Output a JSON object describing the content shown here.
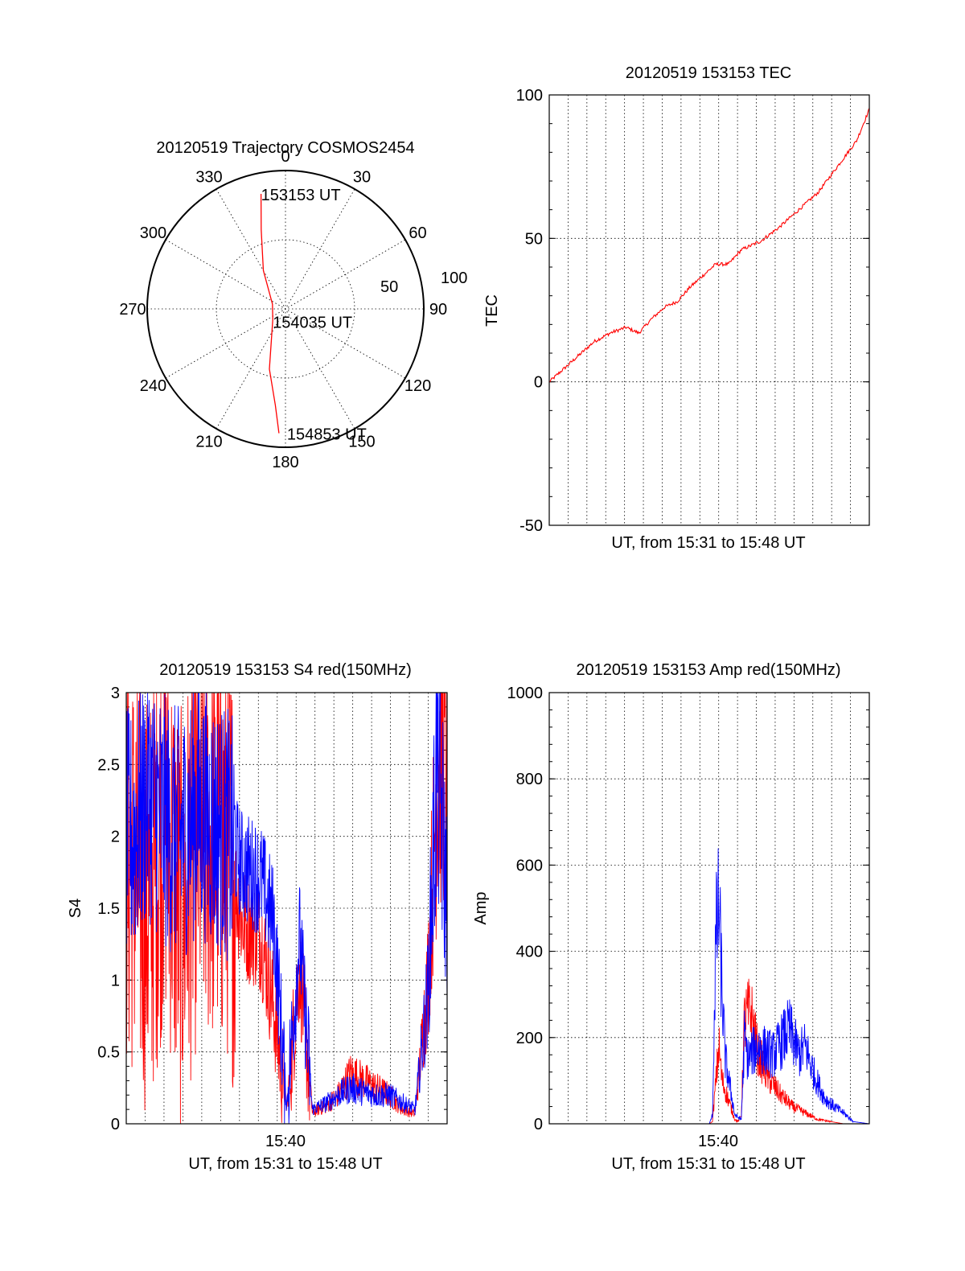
{
  "chart_data": [
    {
      "type": "polar",
      "title": "20120519 Trajectory COSMOS2454",
      "azimuth_labels": [
        "0",
        "30",
        "60",
        "90",
        "120",
        "150",
        "180",
        "210",
        "240",
        "270",
        "300",
        "330"
      ],
      "radial_labels": [
        "50",
        "100"
      ],
      "radial_range": [
        0,
        100
      ],
      "grid": true,
      "series": [
        {
          "color": "#ff0000",
          "points": [
            {
              "az": 348,
              "zen": 85,
              "label": "153153 UT"
            },
            {
              "az": 343,
              "zen": 60
            },
            {
              "az": 330,
              "zen": 32
            },
            {
              "az": 290,
              "zen": 10
            },
            {
              "az": 230,
              "zen": 12,
              "label": "154035 UT"
            },
            {
              "az": 195,
              "zen": 45
            },
            {
              "az": 186,
              "zen": 70
            },
            {
              "az": 183,
              "zen": 90,
              "label": "154853 UT"
            }
          ]
        }
      ]
    },
    {
      "type": "line",
      "title": "20120519 153153 TEC",
      "xlabel": "UT, from 15:31 to 15:48 UT",
      "ylabel": "TEC",
      "ylim": [
        -50,
        100
      ],
      "xlim": [
        0,
        1
      ],
      "yticks": [
        "-50",
        "0",
        "50",
        "100"
      ],
      "grid": true,
      "series": [
        {
          "color": "#ff0000",
          "x": [
            0.0,
            0.03,
            0.06,
            0.1,
            0.14,
            0.19,
            0.24,
            0.28,
            0.32,
            0.36,
            0.4,
            0.44,
            0.48,
            0.52,
            0.56,
            0.6,
            0.66,
            0.72,
            0.78,
            0.84,
            0.88,
            0.92,
            0.96,
            1.0
          ],
          "y": [
            0,
            3,
            6,
            10,
            14,
            17,
            19,
            17,
            22,
            26,
            28,
            33,
            37,
            41,
            41,
            46,
            49,
            54,
            60,
            66,
            72,
            78,
            84,
            95
          ]
        }
      ]
    },
    {
      "type": "line",
      "title": "20120519 153153 S4 red(150MHz)",
      "xlabel": "UT, from 15:31 to 15:48 UT",
      "ylabel": "S4",
      "xtick_label": "15:40",
      "ylim": [
        0,
        3
      ],
      "yticks": [
        "0",
        "0.5",
        "1",
        "1.5",
        "2",
        "2.5",
        "3"
      ],
      "grid": true,
      "series": [
        {
          "color": "#ff0000",
          "x": [
            0.02,
            0.07,
            0.12,
            0.17,
            0.22,
            0.27,
            0.32,
            0.36,
            0.42,
            0.46,
            0.5,
            0.54,
            0.58,
            0.62,
            0.66,
            0.7,
            0.74,
            0.78,
            0.82,
            0.86,
            0.9,
            0.94,
            0.97,
            1.0
          ],
          "y": [
            1.8,
            1.5,
            2.2,
            1.4,
            2.0,
            2.0,
            1.9,
            1.4,
            1.3,
            0.8,
            0.1,
            1.1,
            0.08,
            0.12,
            0.2,
            0.35,
            0.3,
            0.25,
            0.2,
            0.1,
            0.07,
            1.0,
            2.5,
            2.8
          ]
        },
        {
          "color": "#0000ff",
          "x": [
            0.02,
            0.07,
            0.12,
            0.17,
            0.22,
            0.27,
            0.32,
            0.36,
            0.42,
            0.46,
            0.5,
            0.54,
            0.58,
            0.62,
            0.66,
            0.7,
            0.74,
            0.78,
            0.82,
            0.86,
            0.9,
            0.94,
            0.97,
            1.0
          ],
          "y": [
            2.0,
            2.3,
            2.1,
            2.0,
            2.2,
            2.1,
            2.0,
            1.8,
            1.7,
            1.4,
            0.12,
            1.3,
            0.1,
            0.14,
            0.2,
            0.25,
            0.22,
            0.2,
            0.2,
            0.15,
            0.1,
            0.9,
            2.6,
            1.5
          ]
        }
      ]
    },
    {
      "type": "line",
      "title": "20120519 153153 Amp red(150MHz)",
      "xlabel": "UT, from 15:31 to 15:48 UT",
      "ylabel": "Amp",
      "xtick_label": "15:40",
      "ylim": [
        0,
        1000
      ],
      "yticks": [
        "0",
        "200",
        "400",
        "600",
        "800",
        "1000"
      ],
      "grid": true,
      "series": [
        {
          "color": "#ff0000",
          "x": [
            0.0,
            0.45,
            0.5,
            0.51,
            0.53,
            0.54,
            0.58,
            0.59,
            0.6,
            0.61,
            0.63,
            0.65,
            0.68,
            0.72,
            0.76,
            0.8,
            0.84,
            0.88,
            0.92,
            1.0
          ],
          "y": [
            0,
            0,
            0,
            5,
            180,
            100,
            10,
            5,
            20,
            240,
            260,
            170,
            110,
            70,
            40,
            25,
            10,
            5,
            0,
            0
          ]
        },
        {
          "color": "#0000ff",
          "x": [
            0.0,
            0.45,
            0.5,
            0.51,
            0.52,
            0.53,
            0.54,
            0.55,
            0.58,
            0.6,
            0.61,
            0.62,
            0.65,
            0.7,
            0.75,
            0.78,
            0.8,
            0.83,
            0.86,
            0.89,
            0.92,
            0.95,
            1.0
          ],
          "y": [
            0,
            0,
            0,
            20,
            420,
            500,
            300,
            150,
            20,
            10,
            200,
            150,
            180,
            160,
            220,
            160,
            180,
            110,
            60,
            40,
            25,
            5,
            0
          ]
        }
      ]
    }
  ]
}
